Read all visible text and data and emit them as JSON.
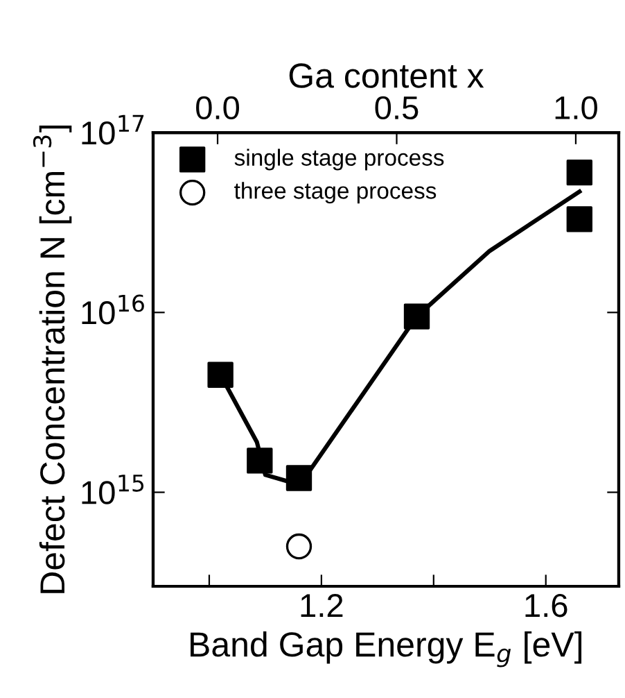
{
  "chart_data": {
    "type": "scatter",
    "xlabel": "Band Gap Energy E$_{g}$ [eV]",
    "ylabel": "Defect Concentration N [cm$^{−3}$]",
    "x2label": "Ga content x",
    "log": "y",
    "xlim": [
      0.9,
      1.73
    ],
    "xticks": [
      {
        "value": 1.0,
        "label": null
      },
      1.2,
      {
        "value": 1.4,
        "label": null
      },
      1.6
    ],
    "ylim": [
      300000000000000.0,
      1e+17
    ],
    "yticks": [
      {
        "value": 1000000000000000.0,
        "label": "10$^{15}$"
      },
      {
        "value": 1e+16,
        "label": "10$^{16}$"
      },
      {
        "value": 1e+17,
        "label": "10$^{17}$"
      }
    ],
    "x2lim": [
      -0.18,
      1.12
    ],
    "x2ticks": [
      {
        "value": 0,
        "label": "0.0"
      },
      0.5,
      {
        "value": 1,
        "label": "1.0"
      }
    ],
    "legend": "top left",
    "grid": false,
    "series": [
      {
        "name": "single stage process",
        "marker": "square",
        "color": "#000000",
        "x": [
          1.02,
          1.09,
          1.16,
          1.37,
          1.66,
          1.66
        ],
        "values": [
          4500000000000000.0,
          1500000000000000.0,
          1200000000000000.0,
          9500000000000000.0,
          6e+16,
          3.3e+16
        ]
      },
      {
        "name": "three stage process",
        "marker": "circle",
        "color": "#000000",
        "x": [
          1.16
        ],
        "values": [
          500000000000000.0
        ]
      },
      {
        "type": "line",
        "marker": "none",
        "line_style": "solid",
        "color": "#000000",
        "x": [
          1.02,
          1.085,
          1.1,
          1.14,
          1.17,
          1.37,
          1.5,
          1.66
        ],
        "values": [
          4500000000000000.0,
          1900000000000000.0,
          1250000000000000.0,
          1150000000000000.0,
          1200000000000000.0,
          9500000000000000.0,
          2.2e+16,
          4.7e+16
        ]
      }
    ]
  }
}
